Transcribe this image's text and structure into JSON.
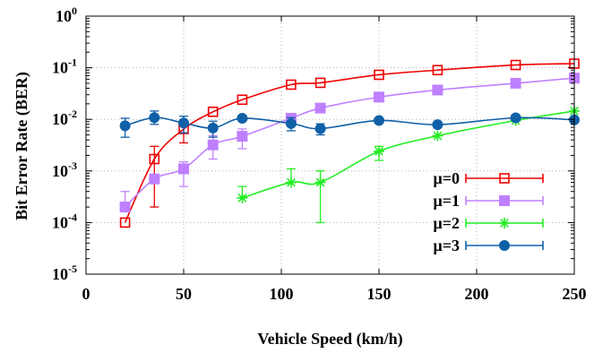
{
  "chart_data": {
    "type": "line",
    "xlabel": "Vehicle Speed (km/h)",
    "ylabel": "Bit Error Rate (BER)",
    "xlim": [
      0,
      250
    ],
    "ylim": [
      1e-05,
      1
    ],
    "yscale": "log",
    "grid": true,
    "legend_position": "bottom-right",
    "x_ticks": [
      "0",
      "50",
      "100",
      "150",
      "200",
      "250"
    ],
    "y_ticks": [
      {
        "base": "10",
        "exp": "0",
        "value": 1
      },
      {
        "base": "10",
        "exp": "-1",
        "value": 0.1
      },
      {
        "base": "10",
        "exp": "-2",
        "value": 0.01
      },
      {
        "base": "10",
        "exp": "-3",
        "value": 0.001
      },
      {
        "base": "10",
        "exp": "-4",
        "value": 0.0001
      },
      {
        "base": "10",
        "exp": "-5",
        "value": 1e-05
      }
    ],
    "series": [
      {
        "name": "μ=0",
        "color": "#ee0000",
        "marker": "open-square",
        "points": [
          {
            "x": 20,
            "y": 0.0001
          },
          {
            "x": 35,
            "y": 0.0017,
            "lo": 0.0002,
            "hi": 0.003
          },
          {
            "x": 50,
            "y": 0.0065,
            "lo": 0.0035,
            "hi": 0.0095
          },
          {
            "x": 65,
            "y": 0.014
          },
          {
            "x": 80,
            "y": 0.024
          },
          {
            "x": 105,
            "y": 0.047
          },
          {
            "x": 120,
            "y": 0.051
          },
          {
            "x": 150,
            "y": 0.073
          },
          {
            "x": 180,
            "y": 0.09
          },
          {
            "x": 220,
            "y": 0.113
          },
          {
            "x": 250,
            "y": 0.12
          }
        ]
      },
      {
        "name": "μ=1",
        "color": "#bf80ff",
        "marker": "filled-square",
        "points": [
          {
            "x": 20,
            "y": 0.0002,
            "lo": 0.0002,
            "hi": 0.0004
          },
          {
            "x": 35,
            "y": 0.0007
          },
          {
            "x": 50,
            "y": 0.0011,
            "lo": 0.0005,
            "hi": 0.0015
          },
          {
            "x": 65,
            "y": 0.0032,
            "lo": 0.0017,
            "hi": 0.0048
          },
          {
            "x": 80,
            "y": 0.0047,
            "lo": 0.0027,
            "hi": 0.0065
          },
          {
            "x": 105,
            "y": 0.0105
          },
          {
            "x": 120,
            "y": 0.0165
          },
          {
            "x": 150,
            "y": 0.027
          },
          {
            "x": 180,
            "y": 0.037
          },
          {
            "x": 220,
            "y": 0.05
          },
          {
            "x": 250,
            "y": 0.063
          }
        ]
      },
      {
        "name": "μ=2",
        "color": "#22ee22",
        "marker": "star",
        "points": [
          {
            "x": 80,
            "y": 0.0003,
            "lo": 0.0003,
            "hi": 0.0005
          },
          {
            "x": 105,
            "y": 0.0006,
            "lo": 0.0006,
            "hi": 0.0011
          },
          {
            "x": 120,
            "y": 0.0006,
            "lo": 0.0001,
            "hi": 0.001
          },
          {
            "x": 150,
            "y": 0.0024,
            "lo": 0.0016,
            "hi": 0.003
          },
          {
            "x": 180,
            "y": 0.0048
          },
          {
            "x": 220,
            "y": 0.0095
          },
          {
            "x": 250,
            "y": 0.0145
          }
        ]
      },
      {
        "name": "μ=3",
        "color": "#1060a8",
        "marker": "filled-circle",
        "points": [
          {
            "x": 20,
            "y": 0.0075,
            "lo": 0.0045,
            "hi": 0.0105
          },
          {
            "x": 35,
            "y": 0.0108,
            "lo": 0.008,
            "hi": 0.0145
          },
          {
            "x": 50,
            "y": 0.0085,
            "lo": 0.0055,
            "hi": 0.0115
          },
          {
            "x": 65,
            "y": 0.0068,
            "lo": 0.0045,
            "hi": 0.0092
          },
          {
            "x": 80,
            "y": 0.0105
          },
          {
            "x": 105,
            "y": 0.0083,
            "lo": 0.006,
            "hi": 0.0108
          },
          {
            "x": 120,
            "y": 0.0066,
            "lo": 0.005,
            "hi": 0.0082
          },
          {
            "x": 150,
            "y": 0.0095
          },
          {
            "x": 180,
            "y": 0.0079
          },
          {
            "x": 220,
            "y": 0.0107
          },
          {
            "x": 250,
            "y": 0.0098
          }
        ]
      }
    ]
  }
}
